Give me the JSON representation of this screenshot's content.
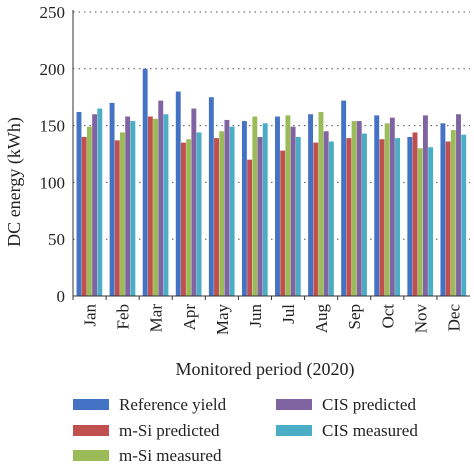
{
  "chart_data": {
    "type": "bar",
    "title": "",
    "xlabel": "Monitored period (2020)",
    "ylabel": "DC energy (kWh)",
    "ylim": [
      0,
      250
    ],
    "yticks": [
      0,
      50,
      100,
      150,
      200,
      250
    ],
    "grid": "horizontal-dotted",
    "legend_position": "bottom",
    "categories": [
      "Jan",
      "Feb",
      "Mar",
      "Apr",
      "May",
      "Jun",
      "Jul",
      "Aug",
      "Sep",
      "Oct",
      "Nov",
      "Dec"
    ],
    "series": [
      {
        "name": "Reference yield",
        "color": "#4472c4",
        "values": [
          162,
          170,
          200,
          180,
          175,
          154,
          158,
          160,
          172,
          159,
          140,
          152
        ]
      },
      {
        "name": "m-Si predicted",
        "color": "#c0504d",
        "values": [
          140,
          137,
          158,
          135,
          139,
          120,
          128,
          135,
          139,
          138,
          144,
          136
        ]
      },
      {
        "name": "m-Si measured",
        "color": "#9bbb59",
        "values": [
          149,
          144,
          156,
          138,
          145,
          158,
          159,
          162,
          154,
          152,
          130,
          146
        ]
      },
      {
        "name": "CIS predicted",
        "color": "#8064a2",
        "values": [
          160,
          158,
          172,
          165,
          155,
          140,
          149,
          145,
          154,
          157,
          159,
          160
        ]
      },
      {
        "name": "CIS measured",
        "color": "#4bacc6",
        "values": [
          165,
          154,
          160,
          144,
          149,
          152,
          140,
          136,
          143,
          139,
          131,
          142
        ]
      }
    ]
  }
}
